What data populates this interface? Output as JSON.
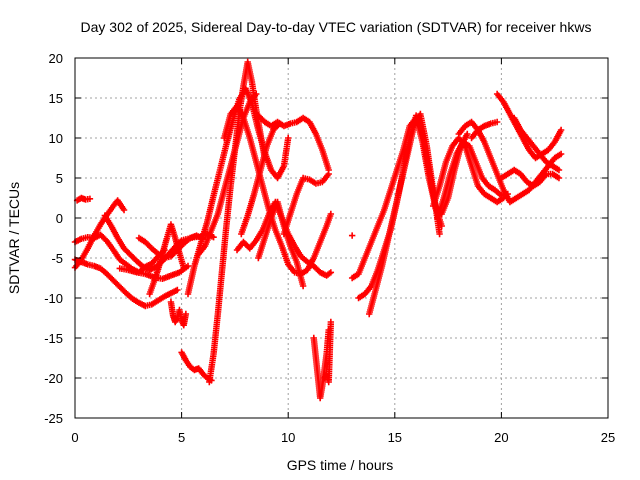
{
  "chart_data": {
    "type": "scatter",
    "title": "Day 302 of 2025, Sidereal Day-to-day VTEC variation (SDTVAR) for receiver hkws",
    "xlabel": "GPS time / hours",
    "ylabel": "SDTVAR / TECUs",
    "xlim": [
      0,
      25
    ],
    "ylim": [
      -25,
      20
    ],
    "xticks": [
      "0",
      "5",
      "10",
      "15",
      "20",
      "25"
    ],
    "xtick_values": [
      0,
      5,
      10,
      15,
      20,
      25
    ],
    "yticks": [
      "-25",
      "-20",
      "-15",
      "-10",
      "-5",
      "0",
      "5",
      "10",
      "15",
      "20"
    ],
    "ytick_values": [
      -25,
      -20,
      -15,
      -10,
      -5,
      0,
      5,
      10,
      15,
      20
    ],
    "grid": true,
    "marker": "+",
    "color": "#ff0000",
    "series": [
      {
        "name": "s1",
        "x": [
          0.0,
          0.3,
          0.6,
          0.9,
          1.2,
          1.5,
          1.8,
          2.1,
          2.4,
          2.7,
          3.0,
          3.3,
          3.6,
          3.9,
          4.2
        ],
        "y": [
          -3.0,
          -2.6,
          -2.4,
          -2.5,
          -2.1,
          -2.9,
          -4.0,
          -5.2,
          -5.8,
          -6.4,
          -6.8,
          -6.1,
          -5.7,
          -4.8,
          -4.0
        ]
      },
      {
        "name": "s2",
        "x": [
          0.0,
          0.3,
          0.6,
          0.9,
          1.2,
          1.5,
          1.8,
          2.1,
          2.4,
          2.7,
          3.0,
          3.3,
          3.6,
          3.9,
          4.2,
          4.5,
          4.8
        ],
        "y": [
          -5.2,
          -5.5,
          -5.8,
          -6.0,
          -6.3,
          -7.0,
          -7.8,
          -8.6,
          -9.4,
          -10.1,
          -10.6,
          -11.0,
          -10.8,
          -10.3,
          -9.8,
          -9.4,
          -9.0
        ]
      },
      {
        "name": "s3",
        "x": [
          0.0,
          0.3,
          0.6,
          0.9,
          1.2,
          1.5,
          1.8,
          2.0,
          2.3
        ],
        "y": [
          -6.2,
          -5.2,
          -3.8,
          -2.2,
          -0.8,
          0.4,
          1.5,
          2.2,
          1.0
        ]
      },
      {
        "name": "s4",
        "x": [
          0.1,
          0.3,
          0.5,
          0.7
        ],
        "y": [
          2.2,
          2.5,
          2.3,
          2.4
        ]
      },
      {
        "name": "s5",
        "x": [
          1.4,
          1.7,
          2.0,
          2.3,
          2.6,
          2.9,
          3.2,
          3.5,
          3.8,
          4.1,
          4.4,
          4.7,
          5.0,
          5.3,
          5.6,
          5.9,
          6.2,
          6.5
        ],
        "y": [
          0.3,
          -1.0,
          -2.5,
          -3.8,
          -4.6,
          -5.4,
          -6.1,
          -6.5,
          -6.1,
          -5.4,
          -4.5,
          -3.6,
          -2.8,
          -2.6,
          -2.4,
          -2.3,
          -2.0,
          -2.4
        ]
      },
      {
        "name": "s6",
        "x": [
          2.1,
          2.5,
          2.9,
          3.3,
          3.7,
          4.1,
          4.5,
          4.9,
          5.3
        ],
        "y": [
          -6.3,
          -6.5,
          -6.8,
          -7.0,
          -7.4,
          -7.6,
          -7.2,
          -6.8,
          -6.0
        ]
      },
      {
        "name": "s7",
        "x": [
          3.5,
          3.7,
          3.9,
          4.1,
          4.3,
          4.5,
          4.7,
          4.9,
          5.1
        ],
        "y": [
          -9.5,
          -8.0,
          -6.4,
          -4.5,
          -2.6,
          -0.8,
          -2.5,
          -4.4,
          -6.2
        ]
      },
      {
        "name": "s8",
        "x": [
          4.5,
          4.6,
          4.7,
          4.8,
          4.9,
          5.0,
          5.1,
          5.2
        ],
        "y": [
          -10.5,
          -12.2,
          -13.0,
          -12.5,
          -11.5,
          -12.8,
          -13.4,
          -12.0
        ]
      },
      {
        "name": "s9",
        "x": [
          5.0,
          5.2,
          5.4,
          5.6,
          5.8,
          6.0,
          6.2,
          6.4
        ],
        "y": [
          -16.8,
          -17.8,
          -18.6,
          -19.0,
          -18.8,
          -19.5,
          -20.0,
          -20.3
        ]
      },
      {
        "name": "s10",
        "x": [
          6.3,
          6.5,
          6.7,
          6.9,
          7.1,
          7.3,
          7.5,
          7.7,
          7.9,
          8.1,
          8.3,
          8.5,
          8.7,
          8.9
        ],
        "y": [
          -20.5,
          -17.0,
          -12.0,
          -6.5,
          -1.0,
          4.0,
          8.5,
          13.0,
          16.5,
          19.5,
          17.0,
          13.5,
          10.5,
          7.5
        ]
      },
      {
        "name": "s11",
        "x": [
          5.3,
          5.6,
          5.9,
          6.2,
          6.5,
          6.8,
          7.1,
          7.4,
          7.7,
          8.0,
          8.3,
          8.6,
          8.9,
          9.2,
          9.5,
          9.8,
          10.0
        ],
        "y": [
          -9.5,
          -6.0,
          -3.2,
          -0.5,
          2.8,
          6.0,
          9.2,
          12.2,
          14.8,
          16.2,
          14.3,
          11.0,
          8.2,
          6.0,
          5.0,
          6.5,
          10.0
        ]
      },
      {
        "name": "s12",
        "x": [
          7.0,
          7.3,
          7.6,
          7.9,
          8.2,
          8.5,
          8.8,
          9.1,
          9.4,
          9.7,
          10.0,
          10.3,
          10.6,
          10.9,
          11.2,
          11.5,
          11.8,
          12.0
        ],
        "y": [
          10.0,
          13.0,
          14.0,
          12.5,
          10.0,
          7.0,
          4.0,
          1.0,
          -1.5,
          -3.5,
          -5.8,
          -6.8,
          -7.0,
          -6.5,
          -5.0,
          -3.0,
          -1.0,
          0.5
        ]
      },
      {
        "name": "s13",
        "x": [
          8.6,
          8.9,
          9.2,
          9.5,
          9.8,
          10.1,
          10.4,
          10.7,
          11.0,
          11.3,
          11.6,
          11.9
        ],
        "y": [
          12.8,
          12.0,
          11.5,
          12.0,
          11.5,
          11.8,
          12.0,
          12.5,
          12.0,
          10.5,
          8.5,
          6.0
        ]
      },
      {
        "name": "s14",
        "x": [
          7.6,
          7.9,
          8.2,
          8.5,
          8.8,
          9.1,
          9.4,
          9.7,
          10.0,
          10.3,
          10.6,
          10.9,
          11.2,
          11.5,
          11.8,
          12.0
        ],
        "y": [
          -4.0,
          -3.0,
          -3.8,
          -2.8,
          -1.5,
          0.5,
          2.0,
          0.0,
          -2.0,
          -3.5,
          -4.8,
          -5.5,
          -6.0,
          -6.8,
          -7.2,
          -6.8
        ]
      },
      {
        "name": "s15",
        "x": [
          9.8,
          10.1,
          10.4,
          10.7,
          11.0,
          11.3,
          11.6,
          11.9
        ],
        "y": [
          -2.0,
          0.5,
          3.0,
          5.0,
          4.8,
          4.3,
          4.5,
          5.5
        ]
      },
      {
        "name": "s16",
        "x": [
          8.6,
          8.9,
          9.2,
          9.5,
          9.8,
          10.1,
          10.4,
          10.7
        ],
        "y": [
          -5.0,
          -2.5,
          0.0,
          2.0,
          -1.0,
          -3.5,
          -5.5,
          -8.5
        ]
      },
      {
        "name": "s17",
        "x": [
          7.8,
          8.1,
          8.4,
          8.7,
          9.0,
          9.3,
          9.6
        ],
        "y": [
          -2.0,
          0.3,
          3.0,
          6.0,
          9.0,
          11.0,
          11.8
        ]
      },
      {
        "name": "s18",
        "x": [
          5.8,
          6.1,
          6.4,
          6.7,
          7.0,
          7.3,
          7.6,
          7.9,
          8.2,
          8.5
        ],
        "y": [
          -4.5,
          -3.5,
          -1.5,
          0.5,
          3.5,
          6.5,
          9.5,
          12.5,
          14.5,
          15.5
        ]
      },
      {
        "name": "s19",
        "x": [
          3.0,
          3.3,
          3.6,
          3.9,
          4.2,
          4.5,
          4.8,
          5.1,
          5.4,
          5.7,
          6.0
        ],
        "y": [
          -2.5,
          -3.0,
          -3.8,
          -4.5,
          -5.0,
          -4.8,
          -4.0,
          -3.2,
          -2.5,
          -2.2,
          -2.6
        ]
      },
      {
        "name": "s20",
        "x": [
          11.2,
          11.3,
          11.4,
          11.5,
          11.6,
          11.7,
          11.8,
          11.9
        ],
        "y": [
          -15.0,
          -17.5,
          -20.0,
          -22.5,
          -21.0,
          -19.0,
          -17.0,
          -14.0
        ]
      },
      {
        "name": "s21",
        "x": [
          11.7,
          11.8,
          11.9,
          12.0
        ],
        "y": [
          -20.0,
          -19.5,
          -20.5,
          -13.0
        ]
      },
      {
        "name": "s22",
        "x": [
          13.0
        ],
        "y": [
          -2.2
        ]
      },
      {
        "name": "s23",
        "x": [
          13.3,
          13.6,
          13.9,
          14.2,
          14.5,
          14.8,
          15.1,
          15.4,
          15.7,
          16.0,
          16.3,
          16.6,
          16.9,
          17.2,
          17.5,
          17.8,
          18.1,
          18.4
        ],
        "y": [
          -10.0,
          -9.5,
          -8.5,
          -6.5,
          -4.0,
          -1.5,
          2.0,
          6.0,
          10.0,
          12.8,
          10.5,
          6.0,
          1.5,
          0.5,
          2.5,
          6.0,
          9.0,
          10.5
        ]
      },
      {
        "name": "s24",
        "x": [
          13.0,
          13.3,
          13.6,
          13.9,
          14.2,
          14.5,
          14.8,
          15.1,
          15.4,
          15.7,
          16.0,
          16.3,
          16.6,
          16.9,
          17.2
        ],
        "y": [
          -7.5,
          -7.0,
          -5.0,
          -3.0,
          -1.0,
          1.0,
          3.5,
          6.0,
          8.5,
          11.5,
          12.5,
          9.5,
          5.0,
          1.5,
          -1.0
        ]
      },
      {
        "name": "s25",
        "x": [
          13.8,
          14.1,
          14.4,
          14.7,
          15.0,
          15.3,
          15.6,
          15.9,
          16.2,
          16.5,
          16.8,
          17.1
        ],
        "y": [
          -12.0,
          -9.0,
          -6.0,
          -2.5,
          1.0,
          4.5,
          8.0,
          11.5,
          13.0,
          9.0,
          3.5,
          -2.0
        ]
      },
      {
        "name": "s26",
        "x": [
          16.8,
          17.1,
          17.4,
          17.7,
          18.0,
          18.3,
          18.6,
          18.9,
          19.2,
          19.5,
          19.8,
          20.1
        ],
        "y": [
          1.5,
          4.0,
          7.0,
          9.0,
          10.0,
          9.0,
          6.5,
          4.0,
          3.0,
          2.5,
          2.0,
          2.5
        ]
      },
      {
        "name": "s27",
        "x": [
          17.0,
          17.3,
          17.6,
          17.9,
          18.2,
          18.5,
          18.8,
          19.1,
          19.4,
          19.7,
          20.0,
          20.3
        ],
        "y": [
          0.0,
          2.5,
          5.5,
          8.0,
          9.5,
          9.0,
          7.0,
          5.0,
          4.0,
          3.5,
          2.8,
          3.0
        ]
      },
      {
        "name": "s28",
        "x": [
          18.0,
          18.3,
          18.6,
          18.9,
          19.2,
          19.5,
          19.8,
          20.1,
          20.4,
          20.7,
          21.0,
          21.3,
          21.6,
          21.9,
          22.2,
          22.5,
          22.8
        ],
        "y": [
          10.5,
          11.5,
          12.0,
          11.0,
          9.5,
          7.5,
          5.5,
          3.5,
          2.0,
          2.5,
          3.0,
          3.5,
          4.5,
          5.5,
          6.5,
          7.5,
          8.0
        ]
      },
      {
        "name": "s29",
        "x": [
          18.6,
          18.9,
          19.2,
          19.5,
          19.8
        ],
        "y": [
          10.0,
          11.0,
          11.5,
          11.8,
          12.0
        ]
      },
      {
        "name": "s30",
        "x": [
          19.8,
          20.1,
          20.4,
          20.7,
          21.0,
          21.3,
          21.6,
          21.9,
          22.2,
          22.5,
          22.8
        ],
        "y": [
          15.5,
          14.5,
          13.0,
          11.5,
          10.0,
          8.5,
          7.5,
          8.0,
          8.5,
          9.5,
          11.0
        ]
      },
      {
        "name": "s31",
        "x": [
          20.6,
          20.9,
          21.2,
          21.5,
          21.8,
          22.1,
          22.4,
          22.7
        ],
        "y": [
          12.5,
          11.0,
          10.0,
          9.0,
          8.0,
          7.0,
          6.5,
          6.0
        ]
      },
      {
        "name": "s32",
        "x": [
          20.0,
          20.3,
          20.6,
          20.9,
          21.2,
          21.5,
          21.8,
          22.1,
          22.4,
          22.7
        ],
        "y": [
          5.0,
          5.5,
          6.0,
          5.5,
          4.5,
          4.0,
          4.5,
          5.5,
          5.5,
          5.0
        ]
      }
    ]
  }
}
